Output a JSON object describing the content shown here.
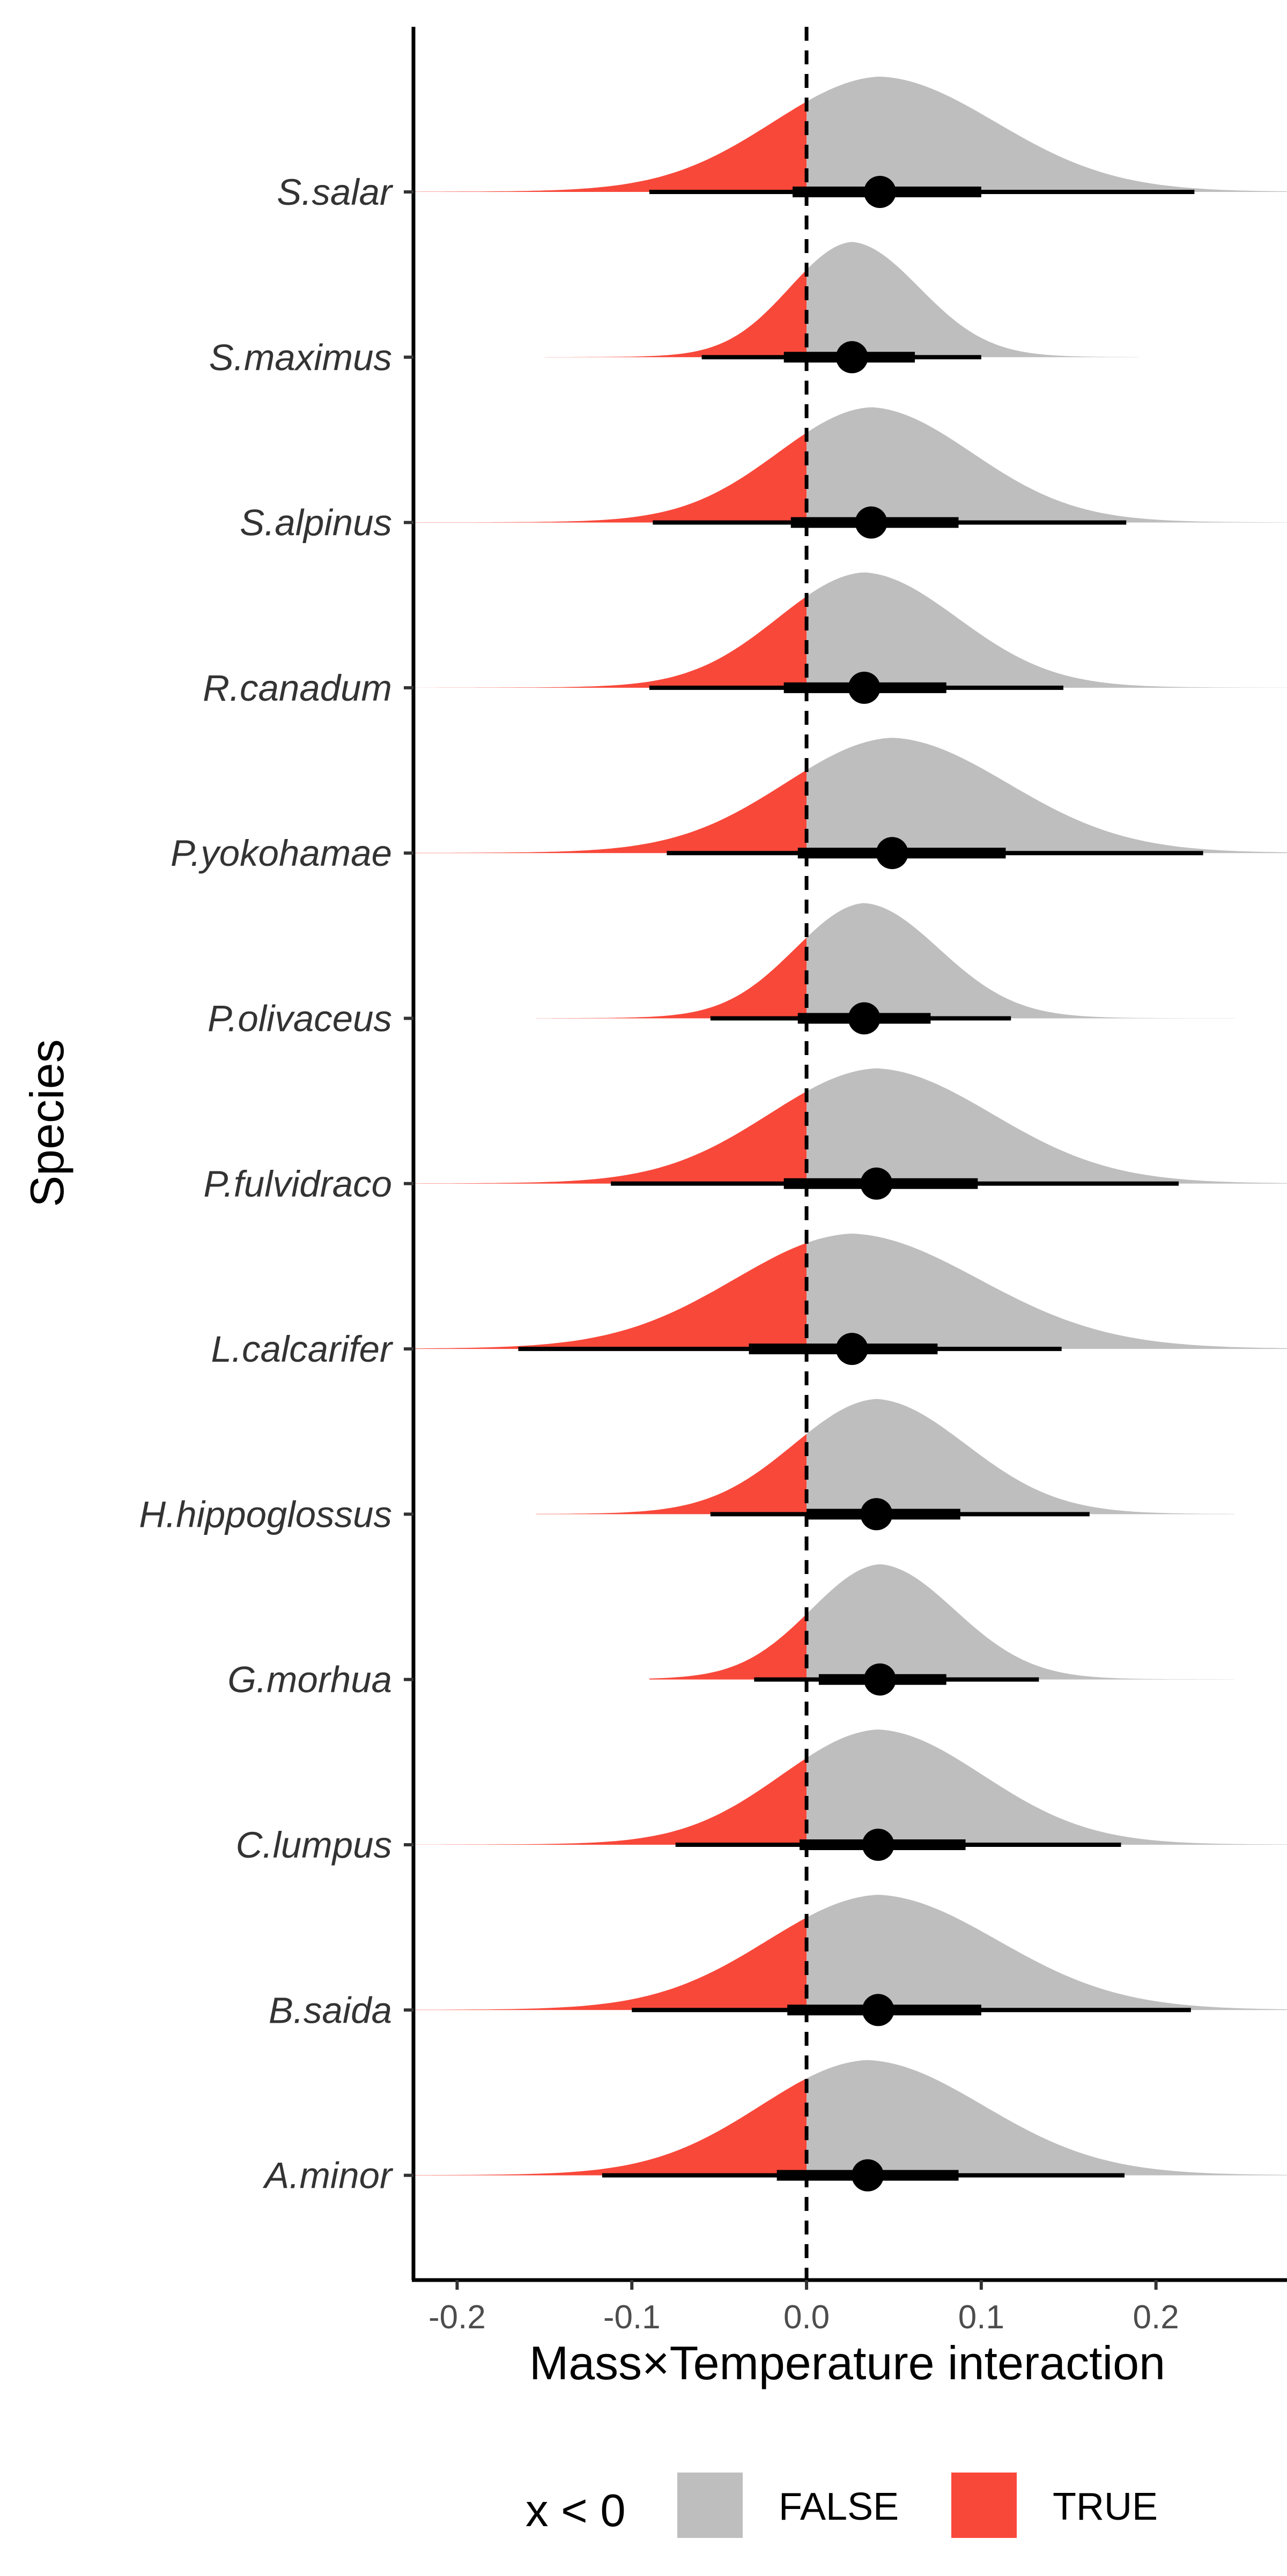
{
  "chart_data": {
    "type": "halfeye",
    "xlabel": "Mass×Temperature interaction",
    "ylabel": "Species",
    "xlim": [
      -0.225,
      0.275
    ],
    "x_ticks": [
      "-0.2",
      "-0.1",
      "0.0",
      "0.1",
      "0.2"
    ],
    "x_tick_values": [
      -0.2,
      -0.1,
      0.0,
      0.1,
      0.2
    ],
    "reference_line_x": 0.0,
    "grid": false,
    "legend": {
      "title": "x < 0",
      "position": "bottom",
      "entries": [
        {
          "label": "FALSE",
          "color": "#bebebe"
        },
        {
          "label": "TRUE",
          "color": "#f8483a"
        }
      ]
    },
    "colors": {
      "false": "#bebebe",
      "true": "#f8483a",
      "interval": "#000000"
    },
    "species": [
      {
        "name": "S.salar",
        "median": 0.042,
        "q66": [
          -0.008,
          0.1
        ],
        "q95": [
          -0.09,
          0.222
        ],
        "sd": 0.062,
        "range": [
          -0.225,
          0.275
        ]
      },
      {
        "name": "S.maximus",
        "median": 0.026,
        "q66": [
          -0.013,
          0.062
        ],
        "q95": [
          -0.06,
          0.1
        ],
        "sd": 0.036,
        "range": [
          -0.15,
          0.19
        ]
      },
      {
        "name": "S.alpinus",
        "median": 0.037,
        "q66": [
          -0.009,
          0.087
        ],
        "q95": [
          -0.088,
          0.183
        ],
        "sd": 0.054,
        "range": [
          -0.225,
          0.275
        ]
      },
      {
        "name": "R.canadum",
        "median": 0.033,
        "q66": [
          -0.013,
          0.08
        ],
        "q95": [
          -0.09,
          0.147
        ],
        "sd": 0.05,
        "range": [
          -0.225,
          0.275
        ]
      },
      {
        "name": "P.yokohamae",
        "median": 0.049,
        "q66": [
          -0.005,
          0.114
        ],
        "q95": [
          -0.08,
          0.227
        ],
        "sd": 0.062,
        "range": [
          -0.225,
          0.275
        ]
      },
      {
        "name": "P.olivaceus",
        "median": 0.033,
        "q66": [
          -0.005,
          0.071
        ],
        "q95": [
          -0.055,
          0.117
        ],
        "sd": 0.04,
        "range": [
          -0.155,
          0.245
        ]
      },
      {
        "name": "P.fulvidraco",
        "median": 0.04,
        "q66": [
          -0.013,
          0.098
        ],
        "q95": [
          -0.112,
          0.213
        ],
        "sd": 0.062,
        "range": [
          -0.225,
          0.275
        ]
      },
      {
        "name": "L.calcarifer",
        "median": 0.026,
        "q66": [
          -0.033,
          0.075
        ],
        "q95": [
          -0.165,
          0.146
        ],
        "sd": 0.068,
        "range": [
          -0.225,
          0.275
        ]
      },
      {
        "name": "H.hippoglossus",
        "median": 0.04,
        "q66": [
          0.0,
          0.088
        ],
        "q95": [
          -0.055,
          0.162
        ],
        "sd": 0.048,
        "range": [
          -0.155,
          0.245
        ]
      },
      {
        "name": "G.morhua",
        "median": 0.042,
        "q66": [
          0.007,
          0.08
        ],
        "q95": [
          -0.03,
          0.133
        ],
        "sd": 0.04,
        "range": [
          -0.09,
          0.245
        ]
      },
      {
        "name": "C.lumpus",
        "median": 0.041,
        "q66": [
          -0.004,
          0.091
        ],
        "q95": [
          -0.075,
          0.18
        ],
        "sd": 0.056,
        "range": [
          -0.225,
          0.275
        ]
      },
      {
        "name": "B.saida",
        "median": 0.041,
        "q66": [
          -0.011,
          0.1
        ],
        "q95": [
          -0.1,
          0.22
        ],
        "sd": 0.064,
        "range": [
          -0.225,
          0.275
        ]
      },
      {
        "name": "A.minor",
        "median": 0.035,
        "q66": [
          -0.017,
          0.087
        ],
        "q95": [
          -0.117,
          0.182
        ],
        "sd": 0.062,
        "range": [
          -0.225,
          0.275
        ]
      }
    ]
  }
}
